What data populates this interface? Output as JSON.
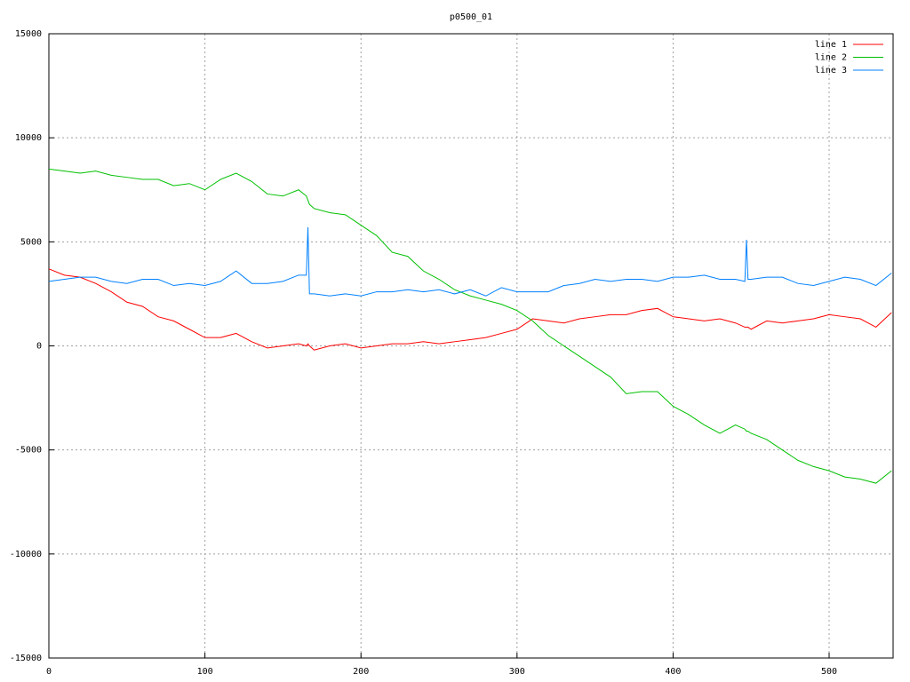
{
  "chart_data": {
    "type": "line",
    "title": "p0500_01",
    "x": [
      0,
      10,
      20,
      30,
      40,
      50,
      60,
      70,
      80,
      90,
      100,
      110,
      120,
      130,
      140,
      150,
      160,
      165,
      166,
      167,
      170,
      180,
      190,
      200,
      210,
      220,
      230,
      240,
      250,
      260,
      270,
      280,
      290,
      300,
      310,
      320,
      330,
      340,
      350,
      360,
      370,
      380,
      390,
      400,
      410,
      420,
      430,
      440,
      446,
      447,
      448,
      450,
      460,
      470,
      480,
      490,
      500,
      510,
      520,
      530,
      540
    ],
    "series": [
      {
        "name": "line 1",
        "color": "#ff0000",
        "values": [
          3700,
          3400,
          3300,
          3000,
          2600,
          2100,
          1900,
          1400,
          1200,
          800,
          400,
          400,
          600,
          200,
          -100,
          0,
          100,
          0,
          100,
          0,
          -200,
          0,
          100,
          -100,
          0,
          100,
          100,
          200,
          100,
          200,
          300,
          400,
          600,
          800,
          1300,
          1200,
          1100,
          1300,
          1400,
          1500,
          1500,
          1700,
          1800,
          1400,
          1300,
          1200,
          1300,
          1100,
          900,
          900,
          900,
          800,
          1200,
          1100,
          1200,
          1300,
          1500,
          1400,
          1300,
          900,
          1600
        ]
      },
      {
        "name": "line 2",
        "color": "#00c000",
        "values": [
          8500,
          8400,
          8300,
          8400,
          8200,
          8100,
          8000,
          8000,
          7700,
          7800,
          7500,
          8000,
          8300,
          7900,
          7300,
          7200,
          7500,
          7200,
          7000,
          6800,
          6600,
          6400,
          6300,
          5800,
          5300,
          4500,
          4300,
          3600,
          3200,
          2700,
          2400,
          2200,
          2000,
          1700,
          1200,
          500,
          0,
          -500,
          -1000,
          -1500,
          -2300,
          -2200,
          -2200,
          -2900,
          -3300,
          -3800,
          -4200,
          -3800,
          -4000,
          -4100,
          -4100,
          -4200,
          -4500,
          -5000,
          -5500,
          -5800,
          -6000,
          -6300,
          -6400,
          -6600,
          -6000
        ]
      },
      {
        "name": "line 3",
        "color": "#0080ff",
        "values": [
          3100,
          3200,
          3300,
          3300,
          3100,
          3000,
          3200,
          3200,
          2900,
          3000,
          2900,
          3100,
          3600,
          3000,
          3000,
          3100,
          3400,
          3400,
          5700,
          2500,
          2500,
          2400,
          2500,
          2400,
          2600,
          2600,
          2700,
          2600,
          2700,
          2500,
          2700,
          2400,
          2800,
          2600,
          2600,
          2600,
          2900,
          3000,
          3200,
          3100,
          3200,
          3200,
          3100,
          3300,
          3300,
          3400,
          3200,
          3200,
          3100,
          5100,
          3200,
          3200,
          3300,
          3300,
          3000,
          2900,
          3100,
          3300,
          3200,
          2900,
          3500
        ]
      }
    ],
    "xlim": [
      0,
      541
    ],
    "xticks": [
      0,
      100,
      200,
      300,
      400,
      500
    ],
    "ylim": [
      -15000,
      15000
    ],
    "yticks": [
      -15000,
      -10000,
      -5000,
      0,
      5000,
      10000,
      15000
    ],
    "grid": true,
    "legend": "top-right"
  }
}
